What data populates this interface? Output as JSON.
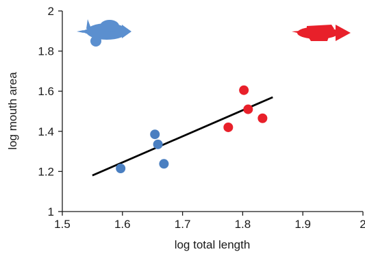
{
  "chart_data": {
    "type": "scatter",
    "title": "",
    "xlabel": "log total length",
    "ylabel": "log mouth area",
    "xlim": [
      1.5,
      2.0
    ],
    "ylim": [
      1.0,
      2.0
    ],
    "xticks": [
      "1.5",
      "1.6",
      "1.7",
      "1.8",
      "1.9",
      "2"
    ],
    "yticks": [
      "1",
      "1.2",
      "1.4",
      "1.6",
      "1.8",
      "2"
    ],
    "grid": false,
    "legend": "none",
    "series": [
      {
        "color": "#4a7fc1",
        "x": [
          1.597,
          1.654,
          1.659,
          1.669
        ],
        "y": [
          1.215,
          1.385,
          1.335,
          1.238
        ]
      },
      {
        "color": "#e8202a",
        "x": [
          1.776,
          1.802,
          1.809,
          1.833
        ],
        "y": [
          1.42,
          1.605,
          1.51,
          1.465
        ]
      }
    ],
    "trendline": {
      "color": "#000000",
      "x": [
        1.55,
        1.85
      ],
      "y": [
        1.18,
        1.57
      ]
    },
    "icons": [
      {
        "name": "blue-fish-icon",
        "color": "#5b8fcf"
      },
      {
        "name": "red-fish-icon",
        "color": "#e8202a"
      }
    ]
  }
}
